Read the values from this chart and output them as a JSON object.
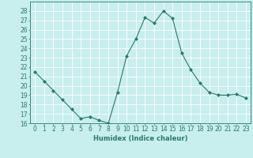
{
  "x": [
    0,
    1,
    2,
    3,
    4,
    5,
    6,
    7,
    8,
    9,
    10,
    11,
    12,
    13,
    14,
    15,
    16,
    17,
    18,
    19,
    20,
    21,
    22,
    23
  ],
  "y": [
    21.5,
    20.5,
    19.5,
    18.5,
    17.5,
    16.5,
    16.7,
    16.3,
    16.0,
    19.3,
    23.2,
    25.0,
    27.3,
    26.7,
    28.0,
    27.2,
    23.5,
    21.7,
    20.3,
    19.3,
    19.0,
    19.0,
    19.1,
    18.7
  ],
  "line_color": "#2a7a6a",
  "marker": "D",
  "marker_size": 2,
  "bg_color": "#c8eeee",
  "grid_color": "#ffffff",
  "tick_color": "#2a7a6a",
  "xlabel": "Humidex (Indice chaleur)",
  "ylim": [
    16,
    29
  ],
  "yticks": [
    16,
    17,
    18,
    19,
    20,
    21,
    22,
    23,
    24,
    25,
    26,
    27,
    28
  ],
  "xlim": [
    -0.5,
    23.5
  ],
  "xticks": [
    0,
    1,
    2,
    3,
    4,
    5,
    6,
    7,
    8,
    9,
    10,
    11,
    12,
    13,
    14,
    15,
    16,
    17,
    18,
    19,
    20,
    21,
    22,
    23
  ],
  "xlabel_fontsize": 6,
  "tick_fontsize": 5.5
}
